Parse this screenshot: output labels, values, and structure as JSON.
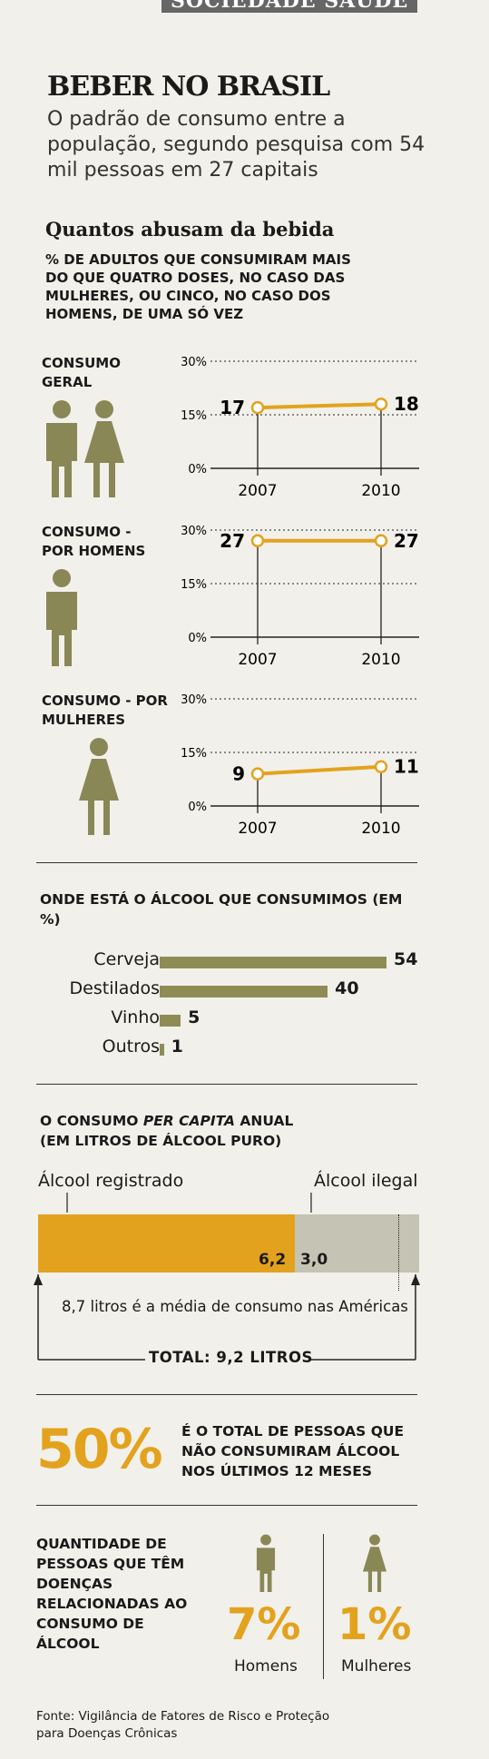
{
  "header_fragment": "SOCIEDADE SAÚDE",
  "title": "BEBER NO BRASIL",
  "subtitle": "O padrão de consumo entre a população, segundo pesquisa com 54 mil pessoas em 27 capitais",
  "section1": {
    "heading": "Quantos abusam da bebida",
    "description": "% DE ADULTOS QUE CONSUMIRAM MAIS DO QUE QUATRO DOSES, NO CASO DAS MULHERES, OU CINCO, NO CASO DOS HOMENS, DE UMA SÓ VEZ"
  },
  "section2": {
    "heading": "ONDE ESTÁ O ÁLCOOL QUE CONSUMIMOS (EM %)"
  },
  "section3": {
    "heading_prefix": "O CONSUMO ",
    "heading_italic": "PER CAPITA",
    "heading_suffix": " ANUAL",
    "heading_line2": "(EM LITROS DE ÁLCOOL PURO)",
    "left_label": "Álcool registrado",
    "right_label": "Álcool ilegal",
    "registered_value": "6,2",
    "illegal_value": "3,0",
    "americas_note": "8,7 litros é a média de consumo nas Américas",
    "total": "TOTAL: 9,2 LITROS"
  },
  "section4": {
    "big_percent": "50%",
    "text": "É O TOTAL DE PESSOAS QUE NÃO CONSUMIRAM ÁLCOOL NOS ÚLTIMOS 12 MESES"
  },
  "section5": {
    "heading": "QUANTIDADE DE PESSOAS QUE TÊM DOENÇAS RELACIONADAS AO CONSUMO DE ÁLCOOL",
    "men_percent": "7%",
    "men_label": "Homens",
    "women_percent": "1%",
    "women_label": "Mulheres"
  },
  "source": "Fonte: Vigilância de Fatores de Risco e Proteção para Doenças Crônicas",
  "colors": {
    "orange": "#e3a21e",
    "olive": "#8f8b55",
    "gray": "#c4c3b4",
    "figure": "#8a8757"
  },
  "chart_data": [
    {
      "type": "line",
      "title": "CONSUMO GERAL",
      "x": [
        "2007",
        "2010"
      ],
      "series": [
        {
          "values": [
            17,
            18
          ]
        }
      ],
      "value_labels": [
        "17",
        "18"
      ],
      "ylim": [
        0,
        30
      ],
      "yticks": [
        "0%",
        "15%",
        "30%"
      ]
    },
    {
      "type": "line",
      "title": "CONSUMO - POR HOMENS",
      "x": [
        "2007",
        "2010"
      ],
      "series": [
        {
          "values": [
            27,
            27
          ]
        }
      ],
      "value_labels": [
        "27",
        "27"
      ],
      "ylim": [
        0,
        30
      ],
      "yticks": [
        "0%",
        "15%",
        "30%"
      ]
    },
    {
      "type": "line",
      "title": "CONSUMO - POR MULHERES",
      "x": [
        "2007",
        "2010"
      ],
      "series": [
        {
          "values": [
            9,
            11
          ]
        }
      ],
      "value_labels": [
        "9",
        "11"
      ],
      "ylim": [
        0,
        30
      ],
      "yticks": [
        "0%",
        "15%",
        "30%"
      ]
    },
    {
      "type": "bar",
      "title": "ONDE ESTÁ O ÁLCOOL QUE CONSUMIMOS (EM %)",
      "categories": [
        "Cerveja",
        "Destilados",
        "Vinho",
        "Outros"
      ],
      "values": [
        54,
        40,
        5,
        1
      ],
      "value_labels": [
        "54",
        "40",
        "5",
        "1"
      ]
    },
    {
      "type": "bar",
      "title": "O CONSUMO PER CAPITA ANUAL (EM LITROS DE ÁLCOOL PURO)",
      "categories": [
        "Álcool registrado",
        "Álcool ilegal"
      ],
      "values": [
        6.2,
        3.0
      ],
      "total": 9.2,
      "reference": 8.7
    }
  ]
}
